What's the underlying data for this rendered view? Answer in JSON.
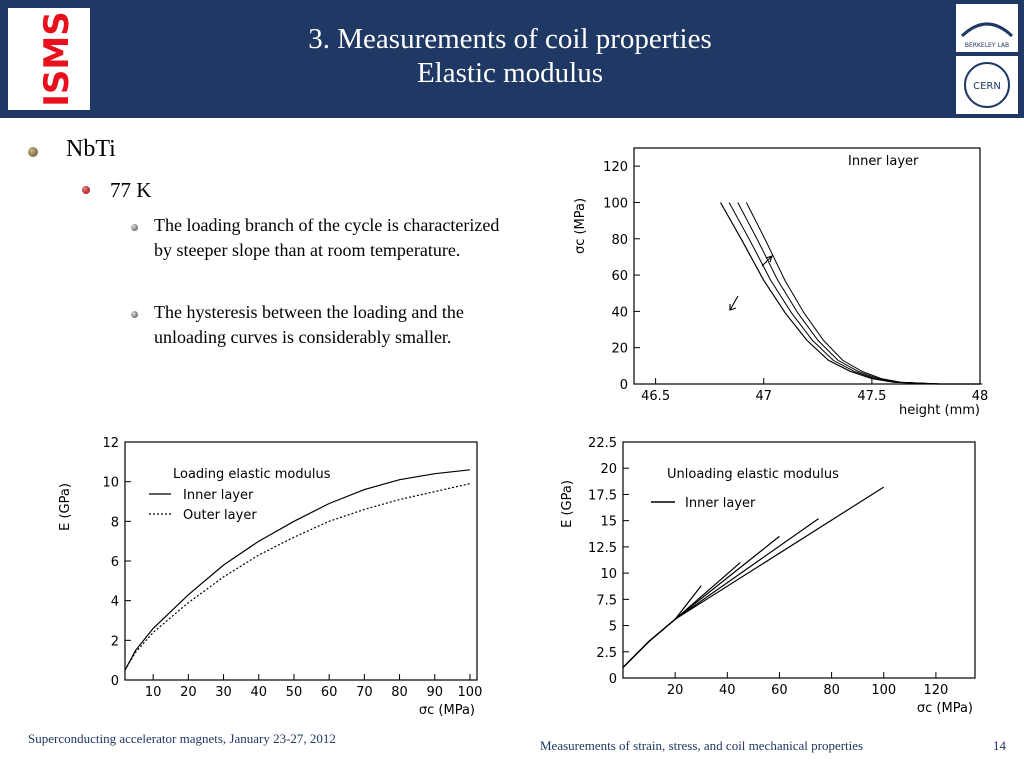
{
  "header": {
    "title_line1": "3. Measurements of coil properties",
    "title_line2": "Elastic modulus",
    "left_logo_text": "ISMS",
    "right_logo_text_top": "BERKELEY LAB",
    "right_logo_text_bottom": "CERN",
    "background": "#1f3864"
  },
  "bullets": {
    "level1": "NbTi",
    "level2": "77 K",
    "level3": [
      "The loading branch of the cycle is characterized by steeper slope than at room temperature.",
      "The hysteresis between the loading and the unloading curves is considerably smaller."
    ]
  },
  "chart_data": [
    {
      "type": "line",
      "title": "",
      "legend_entries": [
        "Inner layer"
      ],
      "xlabel": "height (mm)",
      "ylabel": "σc (MPa)",
      "xticks": [
        "46.5",
        "47",
        "47.5",
        "48"
      ],
      "yticks": [
        "0",
        "20",
        "40",
        "60",
        "80",
        "100",
        "120"
      ],
      "xlim": [
        46.4,
        48.0
      ],
      "ylim": [
        0,
        130
      ],
      "series": [
        {
          "name": "Inner layer",
          "x": [
            46.8,
            46.9,
            47.0,
            47.1,
            47.2,
            47.3,
            47.4,
            47.5,
            47.6,
            47.8,
            48.0
          ],
          "y": [
            100,
            79,
            57,
            39,
            24,
            13,
            7,
            3,
            1,
            0,
            0
          ]
        }
      ]
    },
    {
      "type": "line",
      "title": "Loading elastic modulus",
      "legend_entries": [
        "Inner layer",
        "Outer layer"
      ],
      "xlabel": "σc (MPa)",
      "ylabel": "E (GPa)",
      "xticks": [
        "10",
        "20",
        "30",
        "40",
        "50",
        "60",
        "70",
        "80",
        "90",
        "100"
      ],
      "yticks": [
        "0",
        "2",
        "4",
        "6",
        "8",
        "10",
        "12"
      ],
      "xlim": [
        2,
        102
      ],
      "ylim": [
        0,
        12
      ],
      "series": [
        {
          "name": "Inner layer",
          "x": [
            2,
            5,
            10,
            20,
            30,
            40,
            50,
            60,
            70,
            80,
            90,
            100
          ],
          "y": [
            0.5,
            1.5,
            2.6,
            4.3,
            5.8,
            7.0,
            8.0,
            8.9,
            9.6,
            10.1,
            10.4,
            10.6
          ]
        },
        {
          "name": "Outer layer",
          "x": [
            2,
            5,
            10,
            20,
            30,
            40,
            50,
            60,
            70,
            80,
            90,
            100
          ],
          "y": [
            0.5,
            1.4,
            2.4,
            3.9,
            5.2,
            6.3,
            7.2,
            8.0,
            8.6,
            9.1,
            9.5,
            9.9
          ]
        }
      ]
    },
    {
      "type": "line",
      "title": "Unloading elastic modulus",
      "legend_entries": [
        "Inner layer"
      ],
      "xlabel": "σc (MPa)",
      "ylabel": "E (GPa)",
      "xticks": [
        "20",
        "40",
        "60",
        "80",
        "100",
        "120"
      ],
      "yticks": [
        "0",
        "2.5",
        "5",
        "7.5",
        "10",
        "12.5",
        "15",
        "17.5",
        "20",
        "22.5"
      ],
      "xlim": [
        0,
        135
      ],
      "ylim": [
        0,
        22.5
      ],
      "series": [
        {
          "name": "Inner layer",
          "x": [
            0,
            10,
            20,
            30
          ],
          "y": [
            1.0,
            3.5,
            5.6,
            8.8
          ]
        },
        {
          "name": "Inner layer",
          "x": [
            0,
            10,
            20,
            45
          ],
          "y": [
            1.0,
            3.5,
            5.6,
            11.0
          ]
        },
        {
          "name": "Inner layer",
          "x": [
            0,
            10,
            20,
            60
          ],
          "y": [
            1.0,
            3.5,
            5.6,
            13.5
          ]
        },
        {
          "name": "Inner layer",
          "x": [
            0,
            10,
            20,
            75
          ],
          "y": [
            1.0,
            3.5,
            5.6,
            15.2
          ]
        },
        {
          "name": "Inner layer",
          "x": [
            0,
            10,
            20,
            100
          ],
          "y": [
            1.0,
            3.5,
            5.6,
            18.2
          ]
        }
      ]
    }
  ],
  "footer": {
    "left": "Superconducting accelerator magnets, January 23-27, 2012",
    "middle": "Measurements of strain, stress, and coil mechanical properties",
    "page_number": "14"
  }
}
